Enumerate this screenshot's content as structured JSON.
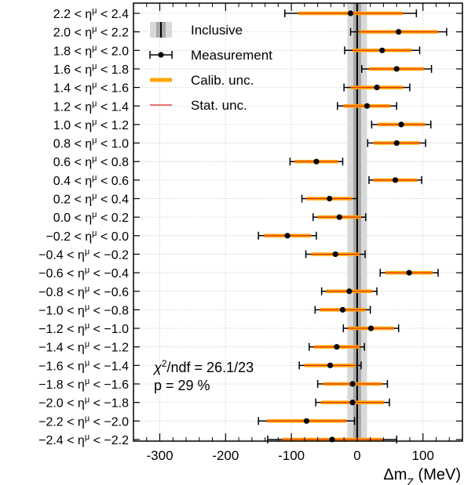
{
  "chart_data": {
    "type": "scatter",
    "xlabel": "Δm_Z (MeV)",
    "xlim": [
      -340,
      160
    ],
    "xticks": [
      -300,
      -200,
      -100,
      0,
      100
    ],
    "grid": true,
    "inclusive_band": {
      "center": 0,
      "stat_halfwidth": 6,
      "total_halfwidth": 15
    },
    "categories": [
      "2.2 < η^μ < 2.4",
      "2.0 < η^μ < 2.2",
      "1.8 < η^μ < 2.0",
      "1.6 < η^μ < 1.8",
      "1.4 < η^μ < 1.6",
      "1.2 < η^μ < 1.4",
      "1.0 < η^μ < 1.2",
      "0.8 < η^μ < 1.0",
      "0.6 < η^μ < 0.8",
      "0.4 < η^μ < 0.6",
      "0.2 < η^μ < 0.4",
      "0.0 < η^μ < 0.2",
      "−0.2 < η^μ < 0.0",
      "−0.4 < η^μ < −0.2",
      "−0.6 < η^μ < −0.4",
      "−0.8 < η^μ < −0.6",
      "−1.0 < η^μ < −0.8",
      "−1.2 < η^μ < −1.0",
      "−1.4 < η^μ < −1.2",
      "−1.6 < η^μ < −1.4",
      "−1.8 < η^μ < −1.6",
      "−2.0 < η^μ < −1.8",
      "−2.2 < η^μ < −2.0",
      "−2.4 < η^μ < −2.2"
    ],
    "series": [
      {
        "name": "Measurement",
        "values": [
          -10,
          63,
          38,
          60,
          30,
          15,
          67,
          60,
          -62,
          58,
          -42,
          -27,
          -106,
          -33,
          79,
          -12,
          -22,
          21,
          -31,
          -41,
          -7,
          -7,
          -77,
          -38
        ],
        "total_err": [
          100,
          73,
          57,
          53,
          50,
          45,
          45,
          44,
          40,
          40,
          42,
          40,
          44,
          45,
          44,
          42,
          42,
          42,
          42,
          47,
          53,
          56,
          73,
          98
        ],
        "calib_unc": [
          60,
          40,
          30,
          30,
          25,
          20,
          20,
          20,
          15,
          15,
          18,
          15,
          18,
          18,
          15,
          15,
          15,
          15,
          15,
          18,
          20,
          25,
          40,
          62
        ],
        "stat_unc": [
          80,
          60,
          45,
          42,
          40,
          36,
          36,
          35,
          33,
          33,
          35,
          33,
          36,
          37,
          36,
          35,
          35,
          35,
          35,
          39,
          45,
          48,
          60,
          76
        ]
      }
    ],
    "legend": {
      "placement": "top-left",
      "entries": [
        "Inclusive",
        "Measurement",
        "Calib. unc.",
        "Stat. unc."
      ]
    },
    "annotations": {
      "chi2_symbol": "χ",
      "chi2_exp": "2",
      "chi2_rest": "/ndf = 26.1/23",
      "pvalue": "p = 29 %"
    },
    "colors": {
      "inclusive_outer": "#d9d9d9",
      "inclusive_inner": "#a8a8a8",
      "calib": "#ffa500",
      "stat": "#dc1e1e",
      "total": "#000000",
      "grid": "#c8c8c8"
    }
  }
}
